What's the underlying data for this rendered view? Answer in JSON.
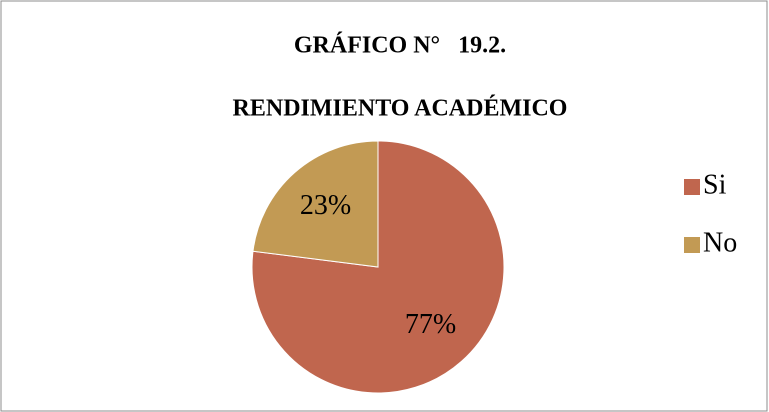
{
  "chart_data": {
    "type": "pie",
    "title": "GRÁFICO N°   19.2.",
    "subtitle": "RENDIMIENTO ACADÉMICO",
    "categories": [
      "Si",
      "No"
    ],
    "values": [
      77,
      23
    ],
    "value_labels": [
      "77%",
      "23%"
    ],
    "colors": [
      "#c0664e",
      "#c29a54"
    ],
    "legend": "right"
  }
}
